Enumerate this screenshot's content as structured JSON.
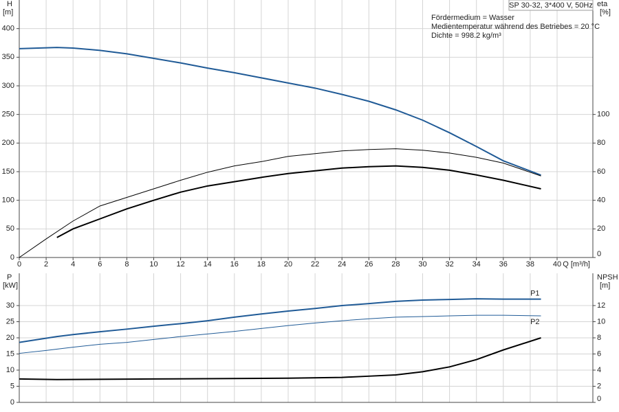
{
  "chart_data": [
    {
      "type": "line",
      "title": "SP 30-32, 3*400 V, 50Hz",
      "annotations": [
        "Fördermedium = Wasser",
        "Medientemperatur während des Betriebes = 20 °C",
        "Dichte = 998.2 kg/m³"
      ],
      "xlabel": "Q [m³/h]",
      "ylabel": "H",
      "yunit": "[m]",
      "y2label": "eta",
      "y2unit": "[%]",
      "xlim": [
        0,
        42.66
      ],
      "xticks": [
        0,
        2,
        4,
        6,
        8,
        10,
        12,
        14,
        16,
        18,
        20,
        22,
        24,
        26,
        28,
        30,
        32,
        34,
        36,
        38,
        40
      ],
      "ylim": [
        0,
        450
      ],
      "yticks": [
        0,
        50,
        100,
        150,
        200,
        250,
        300,
        350,
        400
      ],
      "y2lim": [
        0,
        180
      ],
      "y2ticks": [
        0,
        20,
        40,
        60,
        80,
        100
      ],
      "grid": true,
      "series": [
        {
          "color": "#1f5a96",
          "linewidth": 2,
          "x": [
            0,
            2.8,
            4,
            6,
            8,
            10,
            12,
            14,
            16,
            18,
            20,
            22,
            24,
            26,
            28,
            30,
            32,
            34,
            36,
            38.8
          ],
          "values": [
            365,
            367,
            366,
            362,
            356,
            348,
            340,
            331,
            323,
            314,
            305,
            296,
            285,
            273,
            258,
            240,
            218,
            194,
            169,
            144
          ]
        },
        {
          "color": "#000000",
          "linewidth": 1,
          "axis": "y2",
          "x": [
            0,
            2,
            4,
            6,
            8,
            10,
            12,
            14,
            16,
            18,
            20,
            22,
            24,
            26,
            28,
            30,
            32,
            34,
            36,
            38.8
          ],
          "values": [
            0,
            13,
            25.5,
            36,
            42,
            48,
            54,
            59.6,
            64,
            67,
            70.7,
            72.6,
            74.5,
            75.5,
            76,
            75,
            73,
            70,
            66,
            57
          ]
        },
        {
          "color": "#000000",
          "linewidth": 2,
          "axis": "y2",
          "x": [
            2.8,
            4,
            6,
            8,
            10,
            12,
            14,
            16,
            18,
            20,
            22,
            24,
            26,
            28,
            30,
            32,
            34,
            36,
            38.8
          ],
          "values": [
            14,
            20,
            27,
            34,
            40,
            45.7,
            50,
            53,
            56,
            58.7,
            60.6,
            62.5,
            63.5,
            64,
            63,
            61,
            57.7,
            54,
            48
          ]
        }
      ]
    },
    {
      "type": "line",
      "ylabel": "P",
      "yunit": "[kW]",
      "y2label": "NPSH",
      "y2unit": "[m]",
      "xlim": [
        0,
        42.66
      ],
      "ylim": [
        0,
        40
      ],
      "yticks": [
        0,
        5,
        10,
        15,
        20,
        25,
        30
      ],
      "y2lim": [
        0,
        16
      ],
      "y2ticks": [
        0,
        2,
        4,
        6,
        8,
        10,
        12
      ],
      "grid": true,
      "series": [
        {
          "name": "P1",
          "color": "#1f5a96",
          "linewidth": 2,
          "x": [
            0,
            2.8,
            4,
            6,
            8,
            10,
            12,
            14,
            16,
            18,
            20,
            22,
            24,
            26,
            28,
            30,
            32,
            34,
            36,
            38.8
          ],
          "values": [
            18.6,
            20.4,
            21,
            21.9,
            22.7,
            23.6,
            24.4,
            25.3,
            26.4,
            27.4,
            28.3,
            29.1,
            30,
            30.6,
            31.3,
            31.7,
            31.9,
            32.1,
            32,
            32
          ]
        },
        {
          "name": "P2",
          "color": "#1f5a96",
          "linewidth": 1,
          "x": [
            0,
            2,
            4,
            6,
            8,
            10,
            12,
            14,
            16,
            18,
            20,
            22,
            24,
            26,
            28,
            30,
            32,
            34,
            36,
            38.8
          ],
          "values": [
            15.2,
            16.1,
            17.1,
            18,
            18.6,
            19.5,
            20.4,
            21.2,
            22,
            22.9,
            23.8,
            24.6,
            25.3,
            25.9,
            26.4,
            26.6,
            26.8,
            27,
            27,
            26.8
          ]
        },
        {
          "color": "#000000",
          "linewidth": 2,
          "axis": "y2",
          "x": [
            0,
            2.8,
            10,
            20,
            24,
            26,
            28,
            30,
            32,
            34,
            36,
            38.8
          ],
          "values": [
            2.9,
            2.83,
            2.9,
            3,
            3.1,
            3.25,
            3.4,
            3.8,
            4.4,
            5.3,
            6.5,
            8
          ]
        }
      ]
    }
  ]
}
